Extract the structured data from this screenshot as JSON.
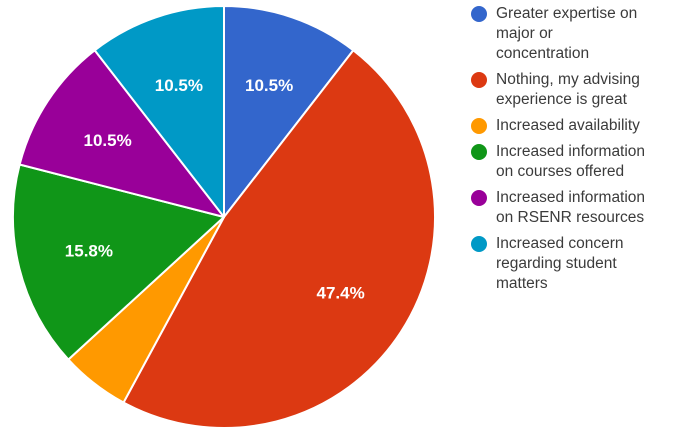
{
  "chart_data": {
    "type": "pie",
    "title": "",
    "slices": [
      {
        "label": "Greater expertise on\nmajor or\nconcentration",
        "value": 10.5,
        "display": "10.5%",
        "color": "#3366cc"
      },
      {
        "label": "Nothing, my advising\nexperience is great",
        "value": 47.4,
        "display": "47.4%",
        "color": "#dc3912"
      },
      {
        "label": "Increased availability",
        "value": 5.3,
        "display": "",
        "color": "#ff9900"
      },
      {
        "label": "Increased information\non courses offered",
        "value": 15.8,
        "display": "15.8%",
        "color": "#109618"
      },
      {
        "label": "Increased information\non RSENR resources",
        "value": 10.5,
        "display": "10.5%",
        "color": "#990099"
      },
      {
        "label": "Increased concern\nregarding student\nmatters",
        "value": 10.5,
        "display": "10.5%",
        "color": "#0099c6"
      }
    ],
    "legend_position": "right",
    "start_angle": "12 o'clock, clockwise"
  }
}
